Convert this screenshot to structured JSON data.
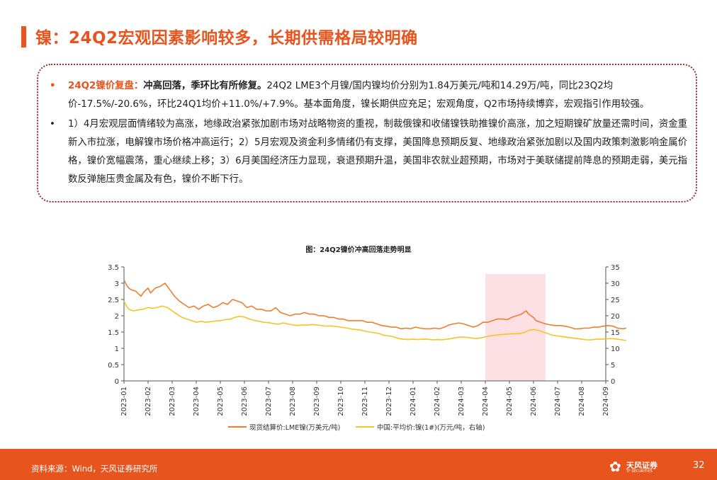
{
  "header": {
    "title": "镍：24Q2宏观因素影响较多，长期供需格局较明确"
  },
  "summary": {
    "bullet_symbol": "•",
    "p1_label": "24Q2镍价复盘：",
    "p1_bold": "冲高回落，季环比有所修复。",
    "p1_text": "24Q2 LME3个月镍/国内镍均价分别为1.84万美元/吨和14.29万/吨，同比23Q2均价-17.5%/-20.6%，环比24Q1均价+11.0%/+7.9%。基本面角度，镍长期供应充足；宏观角度，Q2市场持续博弈，宏观指引作用较强。",
    "p2_text": "1）4月宏观层面情绪较为高涨，地缘政治紧张加剧市场对战略物资的重视，制裁俄镍和收储镍铁助推镍价高涨，加之短期镍矿放量还需时间，资金重新入市拉涨，电解镍市场价格冲高运行；2）5月宏观及资金利多情绪仍有支撑，美国降息预期反复、地缘政治紧张加剧以及国内政策刺激影响金属价格，镍价宽幅震荡，重心继续上移；3）6月美国经济压力显现，衰退预期升温，美国非农就业超预期，市场对于美联储提前降息的预期走弱，美元指数反弹施压贵金属及有色，镍价不断下行。"
  },
  "chart_data": {
    "type": "line",
    "title": "图：24Q2镍价冲高回落走势明显",
    "x_categories": [
      "2023-01",
      "2023-02",
      "2023-03",
      "2023-04",
      "2023-05",
      "2023-06",
      "2023-07",
      "2023-08",
      "2023-09",
      "2023-10",
      "2023-11",
      "2023-12",
      "2024-01",
      "2024-02",
      "2024-03",
      "2024-04",
      "2024-05",
      "2024-06",
      "2024-07",
      "2024-08",
      "2024-09"
    ],
    "y_left": {
      "range": [
        0,
        3.5
      ],
      "ticks": [
        "0",
        "0.5",
        "1",
        "1.5",
        "2",
        "2.5",
        "3",
        "3.5"
      ]
    },
    "y_right": {
      "range": [
        0,
        35
      ],
      "ticks": [
        "0",
        "5",
        "10",
        "15",
        "20",
        "25",
        "30",
        "35"
      ]
    },
    "highlight": {
      "from": "2024-04",
      "to": "2024-06",
      "color": "#fde0e4"
    },
    "grid": false,
    "legend_position": "bottom",
    "series": [
      {
        "name": "现货结算价:LME镍(万美元/吨)",
        "axis": "left",
        "color": "#f07d2c",
        "x": [
          0,
          0.1,
          0.2,
          0.3,
          0.5,
          0.7,
          0.85,
          1.0,
          1.1,
          1.3,
          1.5,
          1.7,
          1.9,
          2.1,
          2.3,
          2.5,
          2.7,
          2.9,
          3.1,
          3.3,
          3.5,
          3.7,
          3.9,
          4.1,
          4.3,
          4.5,
          4.7,
          4.9,
          5.1,
          5.3,
          5.5,
          5.7,
          5.9,
          6.1,
          6.3,
          6.5,
          6.7,
          6.9,
          7.1,
          7.3,
          7.5,
          7.7,
          7.9,
          8.1,
          8.3,
          8.5,
          8.7,
          8.9,
          9.1,
          9.3,
          9.5,
          9.7,
          9.9,
          10.1,
          10.3,
          10.5,
          10.7,
          10.9,
          11.1,
          11.3,
          11.5,
          11.7,
          11.9,
          12.1,
          12.3,
          12.5,
          12.7,
          12.9,
          13.1,
          13.3,
          13.5,
          13.7,
          13.9,
          14.1,
          14.3,
          14.5,
          14.7,
          14.9,
          15.1,
          15.3,
          15.5,
          15.7,
          15.9,
          16.1,
          16.3,
          16.5,
          16.7,
          16.8,
          16.9,
          17.0,
          17.1,
          17.3,
          17.5,
          17.7,
          17.9,
          18.1,
          18.3,
          18.5,
          18.7,
          18.9,
          19.1,
          19.3,
          19.5,
          19.7,
          19.9,
          20.1,
          20.3,
          20.5,
          20.7,
          20.85
        ],
        "values": [
          3.1,
          2.95,
          2.85,
          2.8,
          2.75,
          2.6,
          2.75,
          2.85,
          2.7,
          2.85,
          2.9,
          3.0,
          2.8,
          2.6,
          2.45,
          2.35,
          2.25,
          2.3,
          2.2,
          2.3,
          2.35,
          2.25,
          2.3,
          2.4,
          2.35,
          2.5,
          2.45,
          2.4,
          2.25,
          2.3,
          2.2,
          2.2,
          2.15,
          2.15,
          2.25,
          2.1,
          2.05,
          2.0,
          2.05,
          2.05,
          2.1,
          2.05,
          2.05,
          2.0,
          2.0,
          1.95,
          1.95,
          1.9,
          1.9,
          1.85,
          1.85,
          1.85,
          1.85,
          1.8,
          1.8,
          1.75,
          1.7,
          1.68,
          1.65,
          1.65,
          1.6,
          1.62,
          1.6,
          1.65,
          1.62,
          1.6,
          1.6,
          1.62,
          1.6,
          1.65,
          1.72,
          1.75,
          1.78,
          1.75,
          1.7,
          1.65,
          1.7,
          1.8,
          1.8,
          1.85,
          1.9,
          1.9,
          1.88,
          1.95,
          2.0,
          2.05,
          2.15,
          2.05,
          2.0,
          1.95,
          1.85,
          1.8,
          1.75,
          1.72,
          1.7,
          1.7,
          1.68,
          1.65,
          1.6,
          1.6,
          1.62,
          1.62,
          1.65,
          1.65,
          1.68,
          1.7,
          1.68,
          1.62,
          1.6,
          1.62
        ]
      },
      {
        "name": "中国:平均价:镍(1#)(万元/吨，右轴)",
        "axis": "right",
        "color": "#f7c325",
        "x": [
          0,
          0.1,
          0.2,
          0.4,
          0.6,
          0.8,
          1.0,
          1.2,
          1.4,
          1.6,
          1.8,
          2.0,
          2.2,
          2.4,
          2.6,
          2.8,
          3.0,
          3.2,
          3.4,
          3.6,
          3.8,
          4.0,
          4.2,
          4.4,
          4.6,
          4.8,
          5.0,
          5.2,
          5.4,
          5.6,
          5.8,
          6.0,
          6.2,
          6.4,
          6.6,
          6.8,
          7.0,
          7.2,
          7.4,
          7.6,
          7.8,
          8.0,
          8.2,
          8.4,
          8.6,
          8.8,
          9.0,
          9.2,
          9.4,
          9.6,
          9.8,
          10.0,
          10.2,
          10.4,
          10.6,
          10.8,
          11.0,
          11.2,
          11.4,
          11.6,
          11.8,
          12.0,
          12.2,
          12.4,
          12.6,
          12.8,
          13.0,
          13.2,
          13.4,
          13.6,
          13.8,
          14.0,
          14.2,
          14.4,
          14.6,
          14.8,
          15.0,
          15.2,
          15.4,
          15.6,
          15.8,
          16.0,
          16.2,
          16.4,
          16.6,
          16.8,
          17.0,
          17.2,
          17.4,
          17.6,
          17.8,
          18.0,
          18.2,
          18.4,
          18.6,
          18.8,
          19.0,
          19.2,
          19.4,
          19.6,
          19.8,
          20.0,
          20.2,
          20.4,
          20.6,
          20.85
        ],
        "values": [
          24.5,
          23.0,
          22.0,
          21.5,
          21.8,
          22.0,
          22.5,
          22.3,
          22.6,
          23.0,
          22.5,
          21.5,
          20.5,
          19.5,
          19.0,
          18.5,
          18.0,
          18.3,
          18.0,
          18.2,
          18.4,
          18.5,
          18.8,
          18.9,
          19.5,
          19.8,
          19.6,
          19.0,
          18.6,
          18.3,
          18.0,
          17.9,
          17.6,
          17.4,
          17.8,
          17.5,
          17.2,
          17.0,
          17.2,
          17.1,
          17.3,
          17.2,
          17.0,
          16.8,
          16.9,
          16.7,
          16.5,
          16.3,
          16.0,
          15.8,
          15.6,
          15.3,
          15.0,
          14.8,
          14.5,
          14.0,
          13.8,
          13.5,
          13.0,
          12.8,
          12.7,
          12.8,
          12.7,
          12.8,
          12.8,
          12.6,
          12.7,
          12.6,
          12.8,
          13.0,
          13.3,
          13.5,
          13.4,
          13.2,
          13.0,
          13.2,
          13.5,
          13.8,
          14.0,
          14.2,
          14.3,
          14.4,
          14.5,
          14.5,
          14.8,
          15.5,
          15.8,
          15.5,
          15.0,
          14.5,
          14.0,
          13.8,
          13.6,
          13.4,
          13.2,
          13.0,
          12.8,
          12.6,
          12.6,
          12.8,
          12.8,
          12.9,
          13.0,
          12.9,
          12.7,
          12.4
        ]
      }
    ]
  },
  "footer": {
    "source": "资料来源：Wind，天风证券研究所",
    "logo_name": "天风证券",
    "logo_sub": "TF SECURITIES",
    "page_number": "32"
  }
}
